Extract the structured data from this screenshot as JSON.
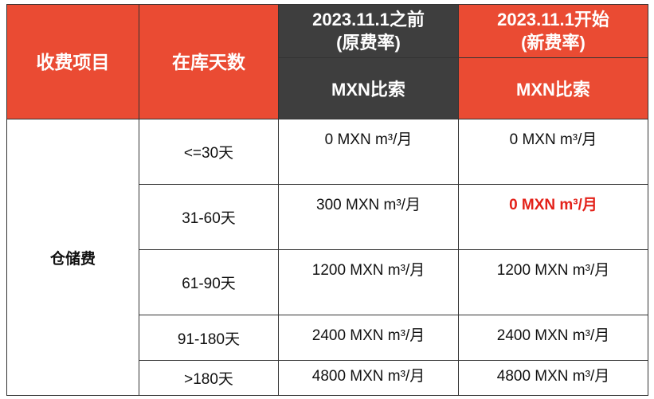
{
  "header": {
    "col_item": "收费项目",
    "col_days": "在库天数",
    "col_old_line1": "2023.11.1之前",
    "col_old_line2": "(原费率)",
    "col_new_line1": "2023.11.1开始",
    "col_new_line2": "(新费率)",
    "currency_old": "MXN比索",
    "currency_new": "MXN比索"
  },
  "category": "仓储费",
  "rows": [
    {
      "days": "<=30天",
      "old": "0 MXN m³/月",
      "new": "0 MXN m³/月"
    },
    {
      "days": "31-60天",
      "old": "300 MXN m³/月",
      "new": "0 MXN m³/月"
    },
    {
      "days": "61-90天",
      "old": "1200 MXN m³/月",
      "new": "1200 MXN m³/月"
    },
    {
      "days": "91-180天",
      "old": "2400 MXN m³/月",
      "new": "2400 MXN m³/月"
    },
    {
      "days": ">180天",
      "old": "4800 MXN m³/月",
      "new": "4800 MXN m³/月"
    }
  ],
  "colors": {
    "header_red": "#ea4b33",
    "header_dark": "#3e3e3e",
    "highlight_red": "#e32119"
  }
}
